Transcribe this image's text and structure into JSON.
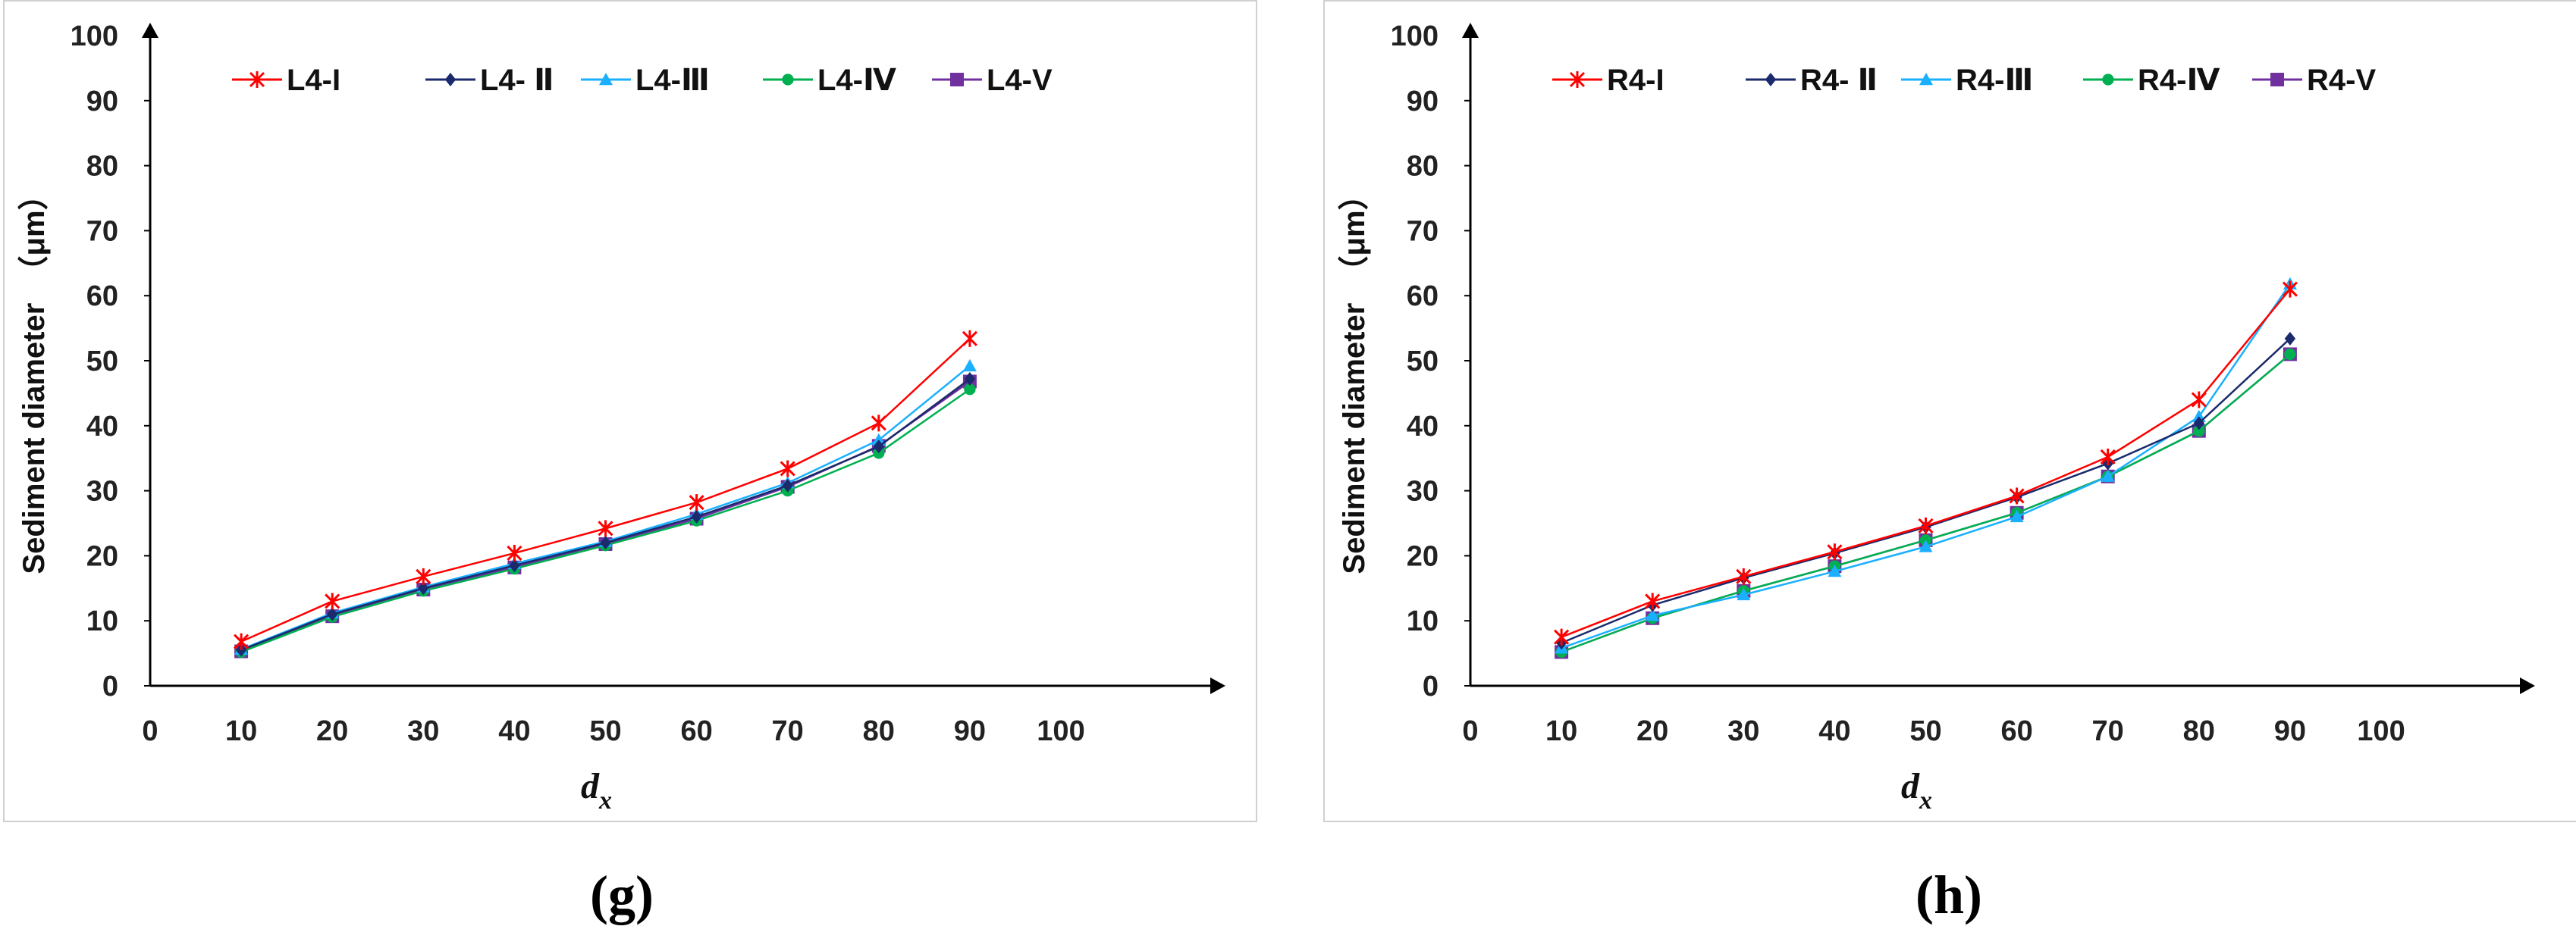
{
  "colors": {
    "I": "#ff0000",
    "II": "#1a2a6c",
    "III": "#1ab0ff",
    "IV": "#00b050",
    "V": "#7030a0",
    "axis": "#000000"
  },
  "chart_data": [
    {
      "id": "g",
      "type": "line",
      "title": "",
      "panel_label": "(g)",
      "xlabel_main": "d",
      "xlabel_sub": "x",
      "ylabel": "Sediment diameter  （μm）",
      "xlim": [
        0,
        100
      ],
      "ylim": [
        0,
        100
      ],
      "xticks": [
        0,
        10,
        20,
        30,
        40,
        50,
        60,
        70,
        80,
        90,
        100
      ],
      "yticks": [
        0,
        10,
        20,
        30,
        40,
        50,
        60,
        70,
        80,
        90,
        100
      ],
      "grid": false,
      "legend_position": "top",
      "x": [
        10,
        20,
        30,
        40,
        50,
        60,
        70,
        80,
        90
      ],
      "series": [
        {
          "name": "L4-I",
          "key": "I",
          "marker": "star",
          "values": [
            6.8,
            13.0,
            16.8,
            20.4,
            24.2,
            28.2,
            33.4,
            40.4,
            53.4
          ]
        },
        {
          "name": "L4- Ⅱ",
          "key": "II",
          "marker": "diamond",
          "values": [
            5.5,
            11.0,
            15.0,
            18.5,
            22.0,
            26.0,
            30.8,
            36.8,
            47.2
          ]
        },
        {
          "name": "L4-Ⅲ",
          "key": "III",
          "marker": "triangle",
          "values": [
            5.6,
            11.2,
            15.2,
            18.8,
            22.2,
            26.4,
            31.2,
            37.8,
            49.2
          ]
        },
        {
          "name": "L4-Ⅳ",
          "key": "IV",
          "marker": "circle",
          "values": [
            5.2,
            10.6,
            14.6,
            18.0,
            21.6,
            25.4,
            30.0,
            35.8,
            45.6
          ]
        },
        {
          "name": "L4-V",
          "key": "V",
          "marker": "square",
          "values": [
            5.3,
            10.7,
            14.8,
            18.2,
            21.8,
            25.7,
            30.6,
            36.9,
            46.8
          ]
        }
      ]
    },
    {
      "id": "h",
      "type": "line",
      "title": "",
      "panel_label": "(h)",
      "xlabel_main": "d",
      "xlabel_sub": "x",
      "ylabel": "Sediment diameter  （μm）",
      "xlim": [
        0,
        100
      ],
      "ylim": [
        0,
        100
      ],
      "xticks": [
        0,
        10,
        20,
        30,
        40,
        50,
        60,
        70,
        80,
        90,
        100
      ],
      "yticks": [
        0,
        10,
        20,
        30,
        40,
        50,
        60,
        70,
        80,
        90,
        100
      ],
      "grid": false,
      "legend_position": "top",
      "x": [
        10,
        20,
        30,
        40,
        50,
        60,
        70,
        80,
        90
      ],
      "series": [
        {
          "name": "R4-I",
          "key": "I",
          "marker": "star",
          "values": [
            7.5,
            13.0,
            16.8,
            20.6,
            24.6,
            29.2,
            35.2,
            44.0,
            61.0
          ]
        },
        {
          "name": "R4- Ⅱ",
          "key": "II",
          "marker": "diamond",
          "values": [
            6.6,
            12.4,
            16.6,
            20.4,
            24.4,
            29.0,
            34.2,
            40.4,
            53.4
          ]
        },
        {
          "name": "R4-Ⅲ",
          "key": "III",
          "marker": "triangle",
          "values": [
            5.8,
            10.8,
            14.0,
            17.6,
            21.4,
            26.0,
            32.2,
            41.4,
            61.8
          ]
        },
        {
          "name": "R4-Ⅳ",
          "key": "IV",
          "marker": "circle",
          "values": [
            5.2,
            10.4,
            14.6,
            18.4,
            22.4,
            26.6,
            32.2,
            39.2,
            51.0
          ]
        },
        {
          "name": "R4-V",
          "key": "V",
          "marker": "square",
          "values": [
            5.2,
            10.4,
            14.6,
            18.4,
            22.4,
            26.6,
            32.2,
            39.2,
            51.0
          ]
        }
      ]
    }
  ]
}
